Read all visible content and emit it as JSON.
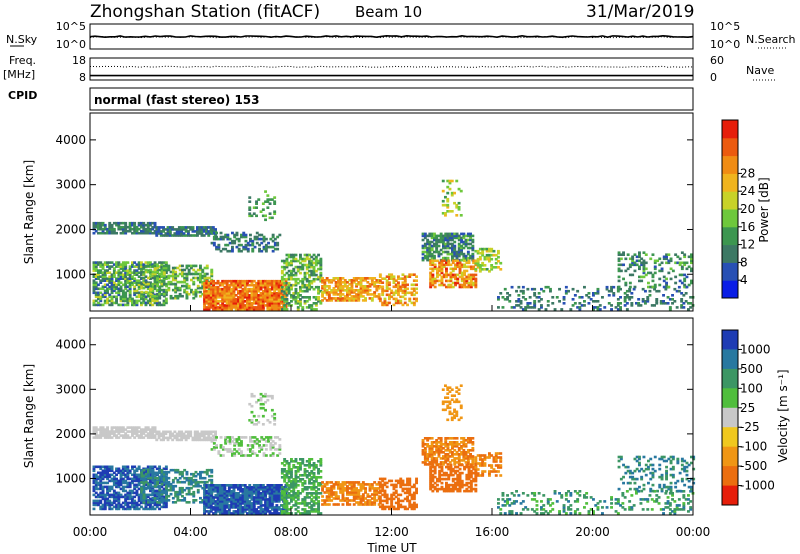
{
  "header": {
    "title": "Zhongshan Station (fitACF)",
    "beam": "Beam 10",
    "date": "31/Mar/2019"
  },
  "left_labels": {
    "nsky": "N.Sky",
    "freq": "Freq.",
    "freq_unit": "[MHz]",
    "cpid": "CPID"
  },
  "right_labels": {
    "nsearch": "N.Search",
    "nave": "Nave"
  },
  "cpid_text": "normal (fast stereo) 153",
  "chart_data": [
    {
      "type": "line",
      "name": "noise-panel",
      "left_ticks": [
        "10^5",
        "10^0"
      ],
      "right_ticks": [
        "10^5",
        "10^0"
      ],
      "series": [
        {
          "name": "N.Sky",
          "style": "solid",
          "level": 0.6
        },
        {
          "name": "N.Search",
          "style": "dotted",
          "level": 0.55
        }
      ]
    },
    {
      "type": "line",
      "name": "freq-nave-panel",
      "left_ticks": [
        "18",
        "8"
      ],
      "right_ticks": [
        "60",
        "0"
      ],
      "series": [
        {
          "name": "Freq.",
          "style": "solid",
          "level": 0.2
        },
        {
          "name": "Nave",
          "style": "dotted",
          "level": 0.6
        }
      ]
    },
    {
      "type": "heatmap",
      "name": "power-panel",
      "ylabel": "Slant Range [km]",
      "yticks": [
        1000,
        2000,
        3000,
        4000
      ],
      "ylim": [
        180,
        4600
      ],
      "xlim": [
        0,
        24
      ],
      "colorbar": {
        "label": "Power [dB]",
        "ticks": [
          "4",
          "8",
          "12",
          "16",
          "20",
          "24",
          "28"
        ],
        "colors": [
          "#0a1ee6",
          "#2850b4",
          "#3c7864",
          "#3c9650",
          "#6ec83c",
          "#c8d228",
          "#f0b41e",
          "#f08c14",
          "#eb5a0f",
          "#e61e0a"
        ]
      }
    },
    {
      "type": "heatmap",
      "name": "velocity-panel",
      "ylabel": "Slant Range [km]",
      "xlabel": "Time UT",
      "yticks": [
        1000,
        2000,
        3000,
        4000
      ],
      "ylim": [
        180,
        4600
      ],
      "xlim": [
        0,
        24
      ],
      "xticks": [
        "00:00",
        "04:00",
        "08:00",
        "12:00",
        "16:00",
        "20:00",
        "00:00"
      ],
      "colorbar": {
        "label": "Velocity [m s⁻¹]",
        "ticks": [
          "1000",
          "500",
          "100",
          "25",
          "-25",
          "-100",
          "-500",
          "-1000"
        ],
        "colors": [
          "#1e3cb4",
          "#2878a0",
          "#3c9664",
          "#50be3c",
          "#c8c8c8",
          "#f0c81e",
          "#f09614",
          "#eb6e0f",
          "#e61e0a"
        ]
      }
    }
  ],
  "regions": [
    {
      "t0": 0.1,
      "t1": 2.6,
      "r0": 1900,
      "r1": 2150,
      "p": [
        1,
        3
      ],
      "v": [
        4,
        4
      ],
      "d": 0.75
    },
    {
      "t0": 2.6,
      "t1": 5.0,
      "r0": 1850,
      "r1": 2050,
      "p": [
        1,
        3
      ],
      "v": [
        4,
        4
      ],
      "d": 0.8
    },
    {
      "t0": 4.8,
      "t1": 7.5,
      "r0": 1500,
      "r1": 1950,
      "p": [
        1,
        3
      ],
      "v": [
        3,
        4
      ],
      "d": 0.4
    },
    {
      "t0": 0.1,
      "t1": 3.0,
      "r0": 300,
      "r1": 1250,
      "p": [
        1,
        5
      ],
      "v": [
        0,
        1
      ],
      "d": 0.7
    },
    {
      "t0": 2.0,
      "t1": 4.8,
      "r0": 450,
      "r1": 1200,
      "p": [
        2,
        5
      ],
      "v": [
        1,
        2
      ],
      "d": 0.5
    },
    {
      "t0": 4.5,
      "t1": 7.8,
      "r0": 200,
      "r1": 850,
      "p": [
        6,
        9
      ],
      "v": [
        0,
        1
      ],
      "d": 0.9
    },
    {
      "t0": 7.6,
      "t1": 9.2,
      "r0": 200,
      "r1": 1450,
      "p": [
        2,
        5
      ],
      "v": [
        2,
        3
      ],
      "d": 0.55
    },
    {
      "t0": 9.2,
      "t1": 11.5,
      "r0": 400,
      "r1": 900,
      "p": [
        5,
        8
      ],
      "v": [
        6,
        7
      ],
      "d": 0.65
    },
    {
      "t0": 11.5,
      "t1": 13.0,
      "r0": 300,
      "r1": 1000,
      "p": [
        5,
        8
      ],
      "v": [
        7,
        7
      ],
      "d": 0.5
    },
    {
      "t0": 13.2,
      "t1": 15.2,
      "r0": 1300,
      "r1": 1900,
      "p": [
        1,
        4
      ],
      "v": [
        6,
        7
      ],
      "d": 0.65
    },
    {
      "t0": 13.5,
      "t1": 15.3,
      "r0": 700,
      "r1": 1300,
      "p": [
        5,
        9
      ],
      "v": [
        7,
        7
      ],
      "d": 0.6
    },
    {
      "t0": 15.3,
      "t1": 16.3,
      "r0": 1050,
      "r1": 1550,
      "p": [
        3,
        6
      ],
      "v": [
        6,
        7
      ],
      "d": 0.5
    },
    {
      "t0": 14.0,
      "t1": 14.8,
      "r0": 2300,
      "r1": 3100,
      "p": [
        3,
        6
      ],
      "v": [
        6,
        6
      ],
      "d": 0.25
    },
    {
      "t0": 16.2,
      "t1": 24.0,
      "r0": 200,
      "r1": 700,
      "p": [
        1,
        3
      ],
      "v": [
        1,
        3
      ],
      "d": 0.22
    },
    {
      "t0": 21.0,
      "t1": 24.0,
      "r0": 700,
      "r1": 1500,
      "p": [
        1,
        4
      ],
      "v": [
        1,
        2
      ],
      "d": 0.25
    },
    {
      "t0": 6.3,
      "t1": 7.3,
      "r0": 2200,
      "r1": 2900,
      "p": [
        2,
        4
      ],
      "v": [
        3,
        4
      ],
      "d": 0.2
    }
  ]
}
